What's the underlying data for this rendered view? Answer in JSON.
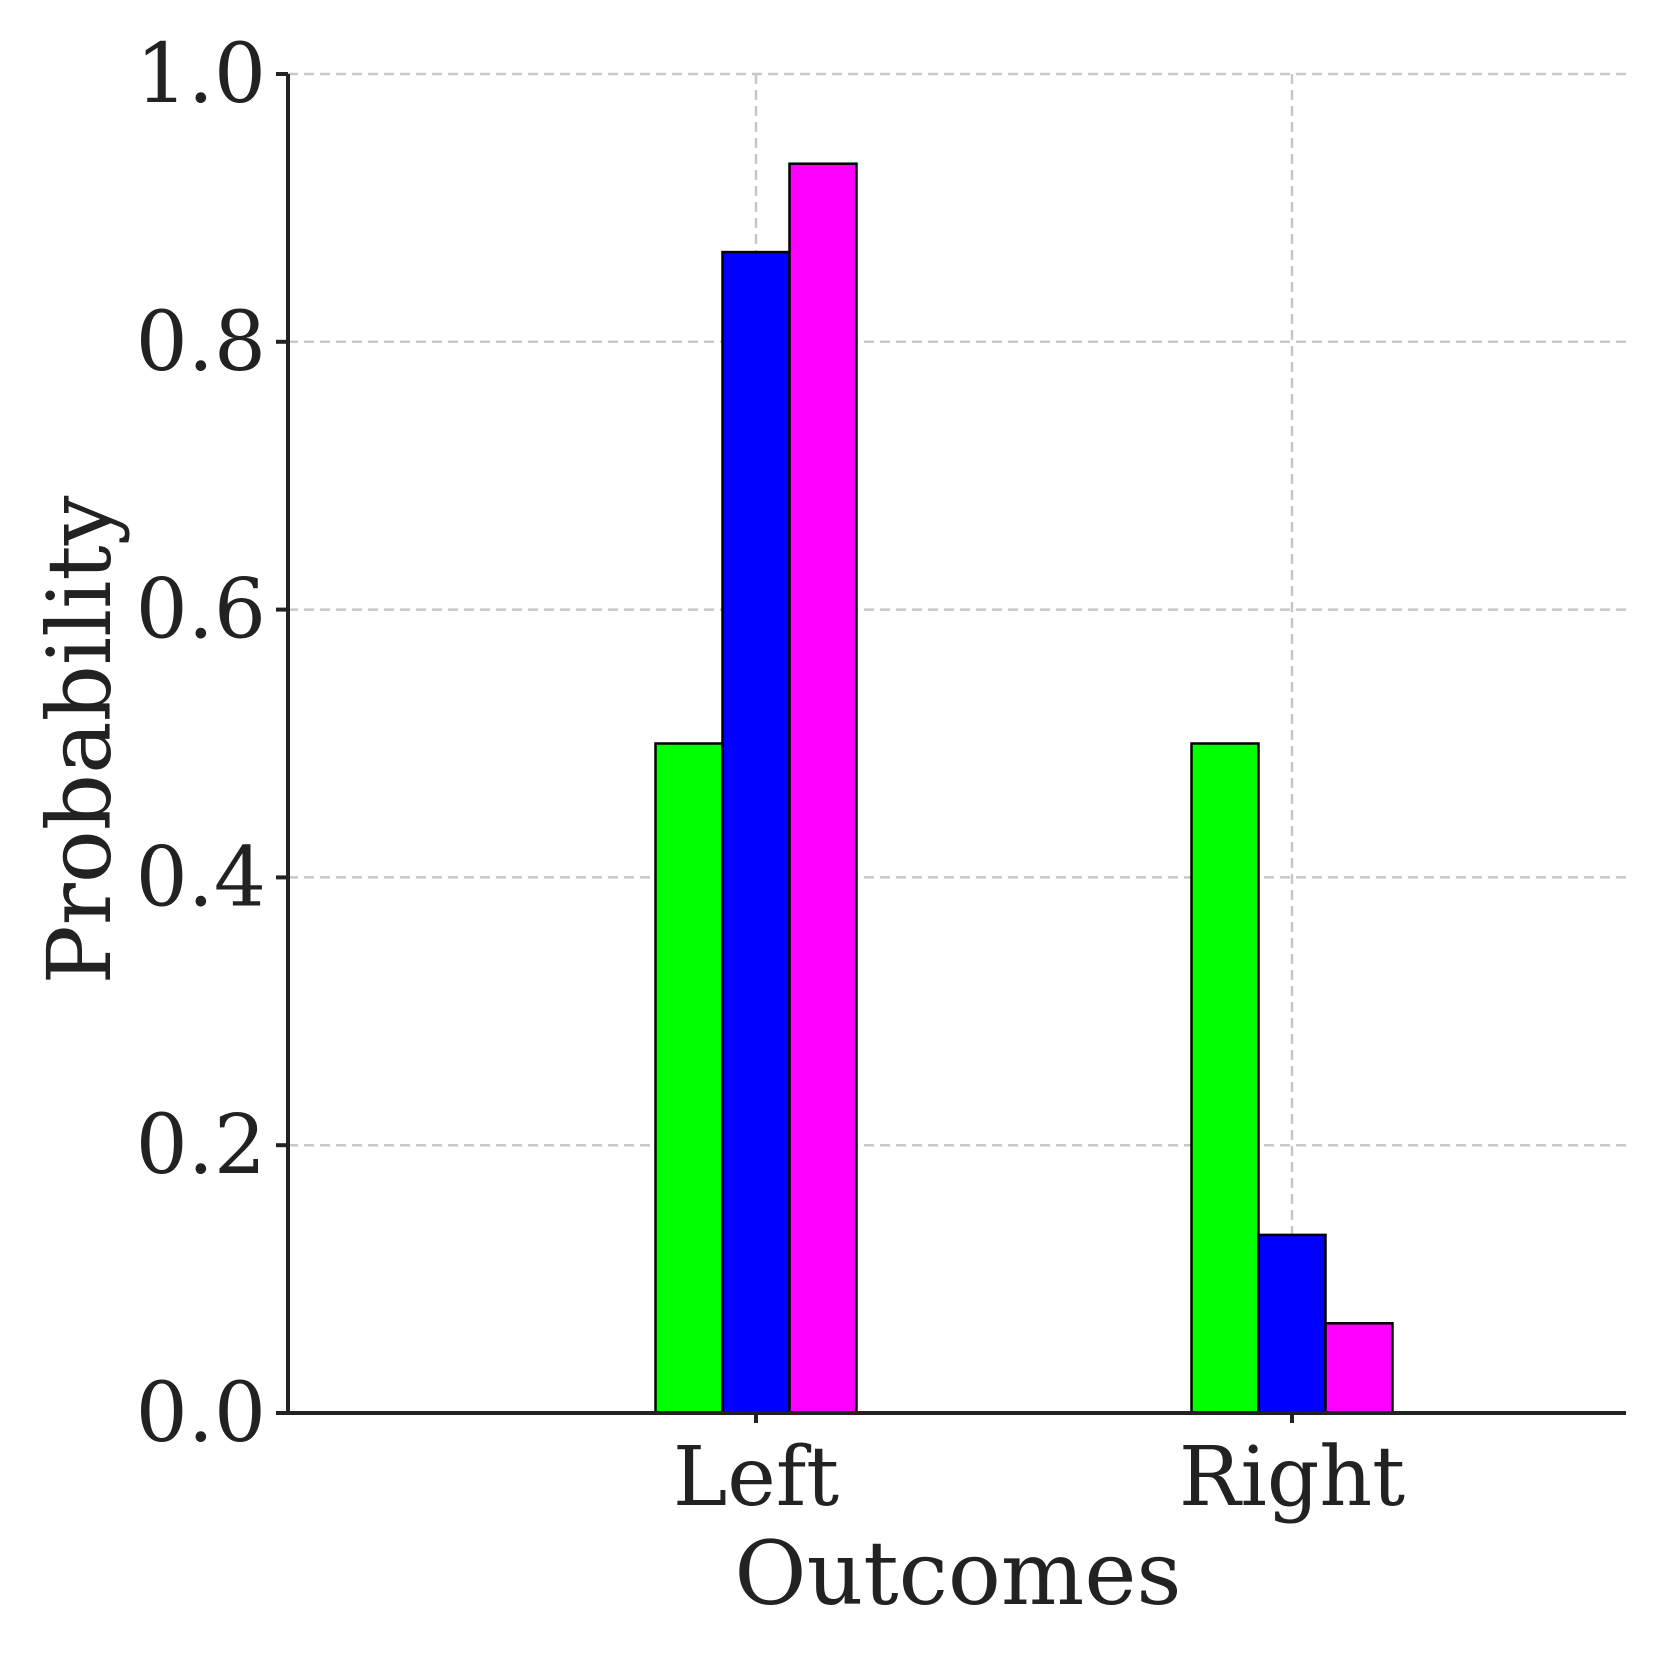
{
  "chart_data": {
    "type": "bar",
    "title": "",
    "xlabel": "Outcomes",
    "ylabel": "Probability",
    "categories": [
      "Left",
      "Right"
    ],
    "ylim": [
      0,
      1.0
    ],
    "yticks": [
      "0.0",
      "0.2",
      "0.4",
      "0.6",
      "0.8",
      "1.0"
    ],
    "grid": true,
    "series": [
      {
        "color": "#00ff00",
        "values": [
          0.5,
          0.5
        ]
      },
      {
        "color": "#0000ff",
        "values": [
          0.867,
          0.133
        ]
      },
      {
        "color": "#ff00ff",
        "values": [
          0.933,
          0.067
        ]
      }
    ]
  }
}
